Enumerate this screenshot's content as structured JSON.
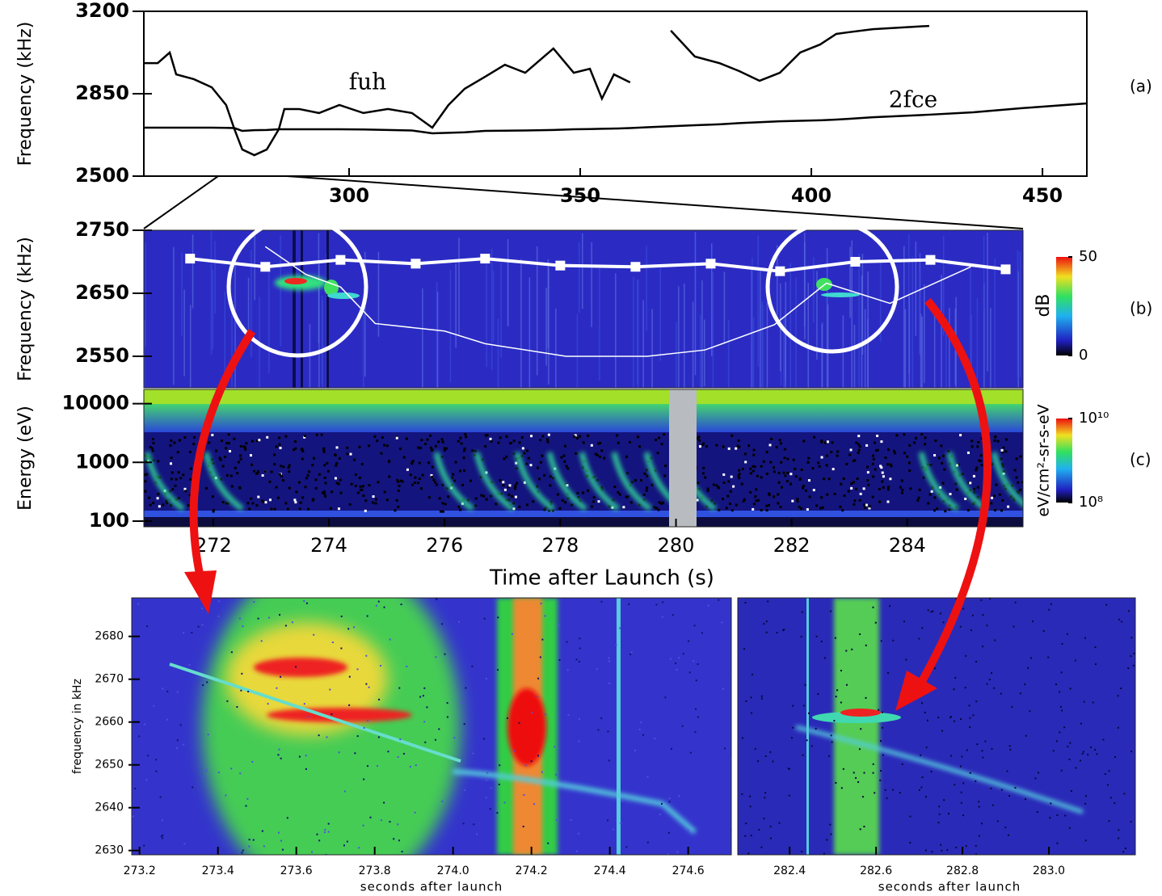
{
  "chart_data": [
    {
      "type": "line",
      "y_label": "Frequency (kHz)",
      "panel": "(a)",
      "x": [
        255.6,
        258.6,
        261.2,
        262.6,
        266.4,
        270.3,
        273.4,
        275.2,
        276.9,
        279.5,
        282.2,
        284.8,
        286.0,
        289.2,
        293.5,
        297.9,
        303.1,
        308.4,
        313.6,
        318.0,
        321.5,
        325.0,
        329.4,
        333.7,
        338.1,
        344.2,
        348.6,
        352.1,
        354.7,
        357.3,
        360.8,
        365.0,
        369.6,
        374.8,
        380.1,
        384.4,
        388.8,
        393.2,
        397.6,
        401.9,
        405.4,
        408.0,
        413.3,
        425.5,
        435,
        445,
        459.6
      ],
      "series": [
        {
          "name": "fuh",
          "color": "#000000",
          "values": [
            2980,
            2980,
            3025,
            2932,
            2912,
            2877,
            2802,
            2699,
            2613,
            2589,
            2613,
            2699,
            2785,
            2785,
            2768,
            2802,
            2768,
            2785,
            2768,
            2706,
            2802,
            2871,
            2922,
            2973,
            2939,
            3042,
            2939,
            2956,
            2829,
            2932,
            2898,
            null,
            3118,
            3008,
            2980,
            2946,
            2905,
            2939,
            3025,
            3059,
            3104,
            3111,
            3124,
            3138,
            null,
            null,
            null
          ]
        },
        {
          "name": "2fce",
          "color": "#000000",
          "values": [
            2706,
            2706,
            2706,
            2706,
            2706,
            2706,
            2705,
            2704,
            2692,
            2695,
            2696,
            2699,
            2699,
            2699,
            2699,
            2699,
            2698,
            2696,
            2694,
            2682,
            2684,
            2686,
            2692,
            2693,
            2694,
            2696,
            2699,
            2700,
            2701,
            2702,
            2704,
            2708,
            2712,
            2716,
            2720,
            2725,
            2729,
            2733,
            2735,
            2737,
            2740,
            2743,
            2750,
            2761,
            2771,
            2788,
            2809
          ]
        }
      ],
      "xlim": [
        255.6,
        459.6
      ],
      "xticks": [
        300,
        350,
        400,
        450
      ],
      "ylim": [
        2500,
        3200
      ],
      "yticks": [
        2500,
        2850,
        3200
      ]
    },
    {
      "type": "spectrogram",
      "y_label": "Frequency (kHz)",
      "panel": "(b)",
      "xlim": [
        270.8,
        286
      ],
      "ylim": [
        2500,
        2750
      ],
      "yticks": [
        2550,
        2650,
        2750
      ],
      "series": [
        {
          "color": "#ffffff",
          "marker": "square",
          "x": [
            271.6,
            272.9,
            274.2,
            275.5,
            276.7,
            278.0,
            279.3,
            280.6,
            281.8,
            283.1,
            284.4,
            285.7
          ],
          "values": [
            2705,
            2692,
            2703,
            2697,
            2705,
            2694,
            2692,
            2697,
            2685,
            2700,
            2703,
            2688
          ]
        },
        {
          "color": "#ffffff",
          "x": [
            272.9,
            273.6,
            274.2,
            274.8,
            276.0,
            276.7,
            278.1,
            279.5,
            280.5,
            281.7,
            282.6,
            283.7,
            285.1
          ],
          "values": [
            2724,
            2680,
            2660,
            2602,
            2590,
            2570,
            2550,
            2550,
            2560,
            2600,
            2666,
            2634,
            2692
          ]
        }
      ],
      "colorbar": {
        "label": "dB",
        "lim": [
          0,
          50
        ],
        "ticks": [
          0,
          50
        ]
      }
    },
    {
      "type": "spectrogram",
      "y_label": "Energy (eV)",
      "panel": "(c)",
      "x_label": "Time after Launch (s)",
      "xlim": [
        270.8,
        286
      ],
      "xticks": [
        272,
        274,
        276,
        278,
        280,
        282,
        284
      ],
      "ylim": [
        80,
        17500
      ],
      "log_y": true,
      "yticks": [
        100,
        1000,
        10000
      ],
      "colorbar": {
        "label": "eV/cm²-sr-s-eV",
        "lim": [
          100000000,
          10000000000
        ],
        "log": true,
        "ticks": [
          {
            "value": 100000000,
            "label": "10⁸"
          },
          {
            "value": 10000000000,
            "label": "10¹⁰"
          }
        ]
      }
    },
    {
      "type": "spectrogram",
      "y_label": "frequency in kHz",
      "x_label": "seconds after launch",
      "xlim": [
        273.18,
        274.71
      ],
      "xticks": [
        273.2,
        273.4,
        273.6,
        273.8,
        {
          "value": 274,
          "label": "274.0"
        },
        274.2,
        274.4,
        274.6
      ],
      "ylim": [
        2629,
        2689
      ],
      "yticks": [
        2630,
        2640,
        2650,
        2660,
        2670,
        2680
      ]
    },
    {
      "type": "spectrogram",
      "x_label": "seconds after launch",
      "xlim": [
        282.28,
        283.2
      ],
      "xticks": [
        282.4,
        282.6,
        282.8,
        {
          "value": 283,
          "label": "283.0"
        }
      ],
      "ylim": [
        2629,
        2689
      ]
    }
  ]
}
